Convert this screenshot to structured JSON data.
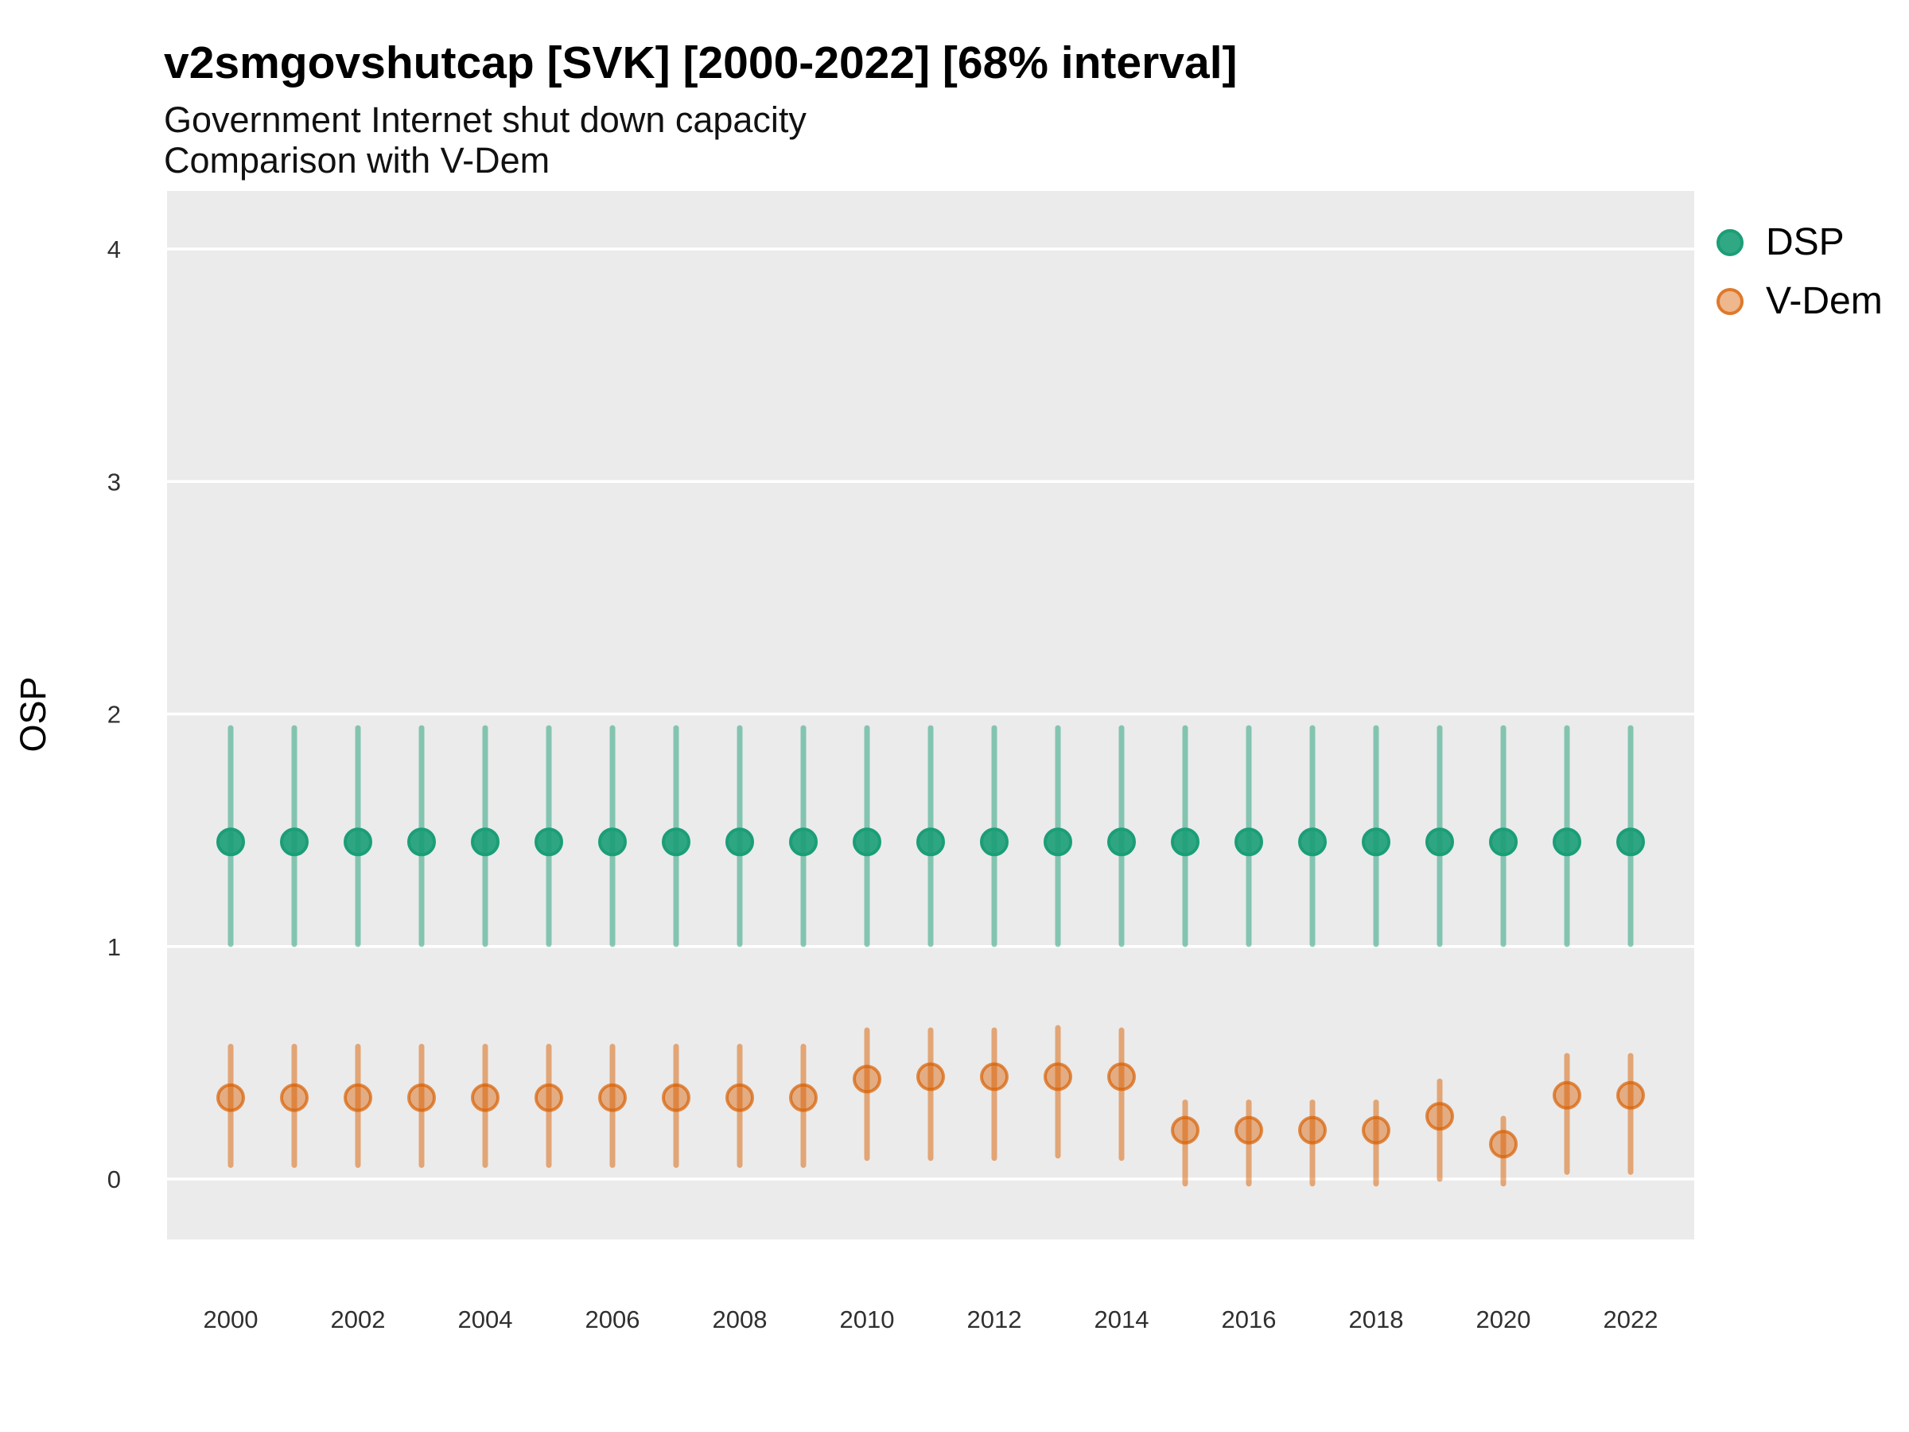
{
  "chart_data": {
    "type": "scatter",
    "title": "v2smgovshutcap [SVK] [2000-2022] [68% interval]",
    "subtitle1": "Government Internet shut down capacity",
    "subtitle2": "Comparison with V-Dem",
    "ylabel": "OSP",
    "interval_note": "68% interval",
    "legend_position": "right",
    "grid": "horizontal-major-only",
    "panel_color": "#ebebeb",
    "gridline_color": "#ffffff",
    "tick_label_color": "#303030",
    "xlim": [
      1999,
      2023
    ],
    "ylim": [
      -0.26,
      4.25
    ],
    "xticks": [
      2000,
      2002,
      2004,
      2006,
      2008,
      2010,
      2012,
      2014,
      2016,
      2018,
      2020,
      2022
    ],
    "yticks": [
      0,
      1,
      2,
      3,
      4
    ],
    "series": [
      {
        "name": "DSP",
        "color": "#1b9e77",
        "line_color": "rgba(27,158,119,0.5)",
        "point_fill": "rgba(27,158,119,0.9)",
        "point_stroke": "#1b9e77",
        "points": [
          {
            "year": 2000,
            "est": 1.45,
            "lo": 1.01,
            "hi": 1.94
          },
          {
            "year": 2001,
            "est": 1.45,
            "lo": 1.01,
            "hi": 1.94
          },
          {
            "year": 2002,
            "est": 1.45,
            "lo": 1.01,
            "hi": 1.94
          },
          {
            "year": 2003,
            "est": 1.45,
            "lo": 1.01,
            "hi": 1.94
          },
          {
            "year": 2004,
            "est": 1.45,
            "lo": 1.01,
            "hi": 1.94
          },
          {
            "year": 2005,
            "est": 1.45,
            "lo": 1.01,
            "hi": 1.94
          },
          {
            "year": 2006,
            "est": 1.45,
            "lo": 1.01,
            "hi": 1.94
          },
          {
            "year": 2007,
            "est": 1.45,
            "lo": 1.01,
            "hi": 1.94
          },
          {
            "year": 2008,
            "est": 1.45,
            "lo": 1.01,
            "hi": 1.94
          },
          {
            "year": 2009,
            "est": 1.45,
            "lo": 1.01,
            "hi": 1.94
          },
          {
            "year": 2010,
            "est": 1.45,
            "lo": 1.01,
            "hi": 1.94
          },
          {
            "year": 2011,
            "est": 1.45,
            "lo": 1.01,
            "hi": 1.94
          },
          {
            "year": 2012,
            "est": 1.45,
            "lo": 1.01,
            "hi": 1.94
          },
          {
            "year": 2013,
            "est": 1.45,
            "lo": 1.01,
            "hi": 1.94
          },
          {
            "year": 2014,
            "est": 1.45,
            "lo": 1.01,
            "hi": 1.94
          },
          {
            "year": 2015,
            "est": 1.45,
            "lo": 1.01,
            "hi": 1.94
          },
          {
            "year": 2016,
            "est": 1.45,
            "lo": 1.01,
            "hi": 1.94
          },
          {
            "year": 2017,
            "est": 1.45,
            "lo": 1.01,
            "hi": 1.94
          },
          {
            "year": 2018,
            "est": 1.45,
            "lo": 1.01,
            "hi": 1.94
          },
          {
            "year": 2019,
            "est": 1.45,
            "lo": 1.01,
            "hi": 1.94
          },
          {
            "year": 2020,
            "est": 1.45,
            "lo": 1.01,
            "hi": 1.94
          },
          {
            "year": 2021,
            "est": 1.45,
            "lo": 1.01,
            "hi": 1.94
          },
          {
            "year": 2022,
            "est": 1.45,
            "lo": 1.01,
            "hi": 1.94
          }
        ]
      },
      {
        "name": "V-Dem",
        "color": "#d95f02",
        "line_color": "rgba(217,95,2,0.5)",
        "point_fill": "rgba(217,95,2,0.45)",
        "point_stroke": "rgba(217,95,2,0.7)",
        "points": [
          {
            "year": 2000,
            "est": 0.35,
            "lo": 0.06,
            "hi": 0.57
          },
          {
            "year": 2001,
            "est": 0.35,
            "lo": 0.06,
            "hi": 0.57
          },
          {
            "year": 2002,
            "est": 0.35,
            "lo": 0.06,
            "hi": 0.57
          },
          {
            "year": 2003,
            "est": 0.35,
            "lo": 0.06,
            "hi": 0.57
          },
          {
            "year": 2004,
            "est": 0.35,
            "lo": 0.06,
            "hi": 0.57
          },
          {
            "year": 2005,
            "est": 0.35,
            "lo": 0.06,
            "hi": 0.57
          },
          {
            "year": 2006,
            "est": 0.35,
            "lo": 0.06,
            "hi": 0.57
          },
          {
            "year": 2007,
            "est": 0.35,
            "lo": 0.06,
            "hi": 0.57
          },
          {
            "year": 2008,
            "est": 0.35,
            "lo": 0.06,
            "hi": 0.57
          },
          {
            "year": 2009,
            "est": 0.35,
            "lo": 0.06,
            "hi": 0.57
          },
          {
            "year": 2010,
            "est": 0.43,
            "lo": 0.09,
            "hi": 0.64
          },
          {
            "year": 2011,
            "est": 0.44,
            "lo": 0.09,
            "hi": 0.64
          },
          {
            "year": 2012,
            "est": 0.44,
            "lo": 0.09,
            "hi": 0.64
          },
          {
            "year": 2013,
            "est": 0.44,
            "lo": 0.1,
            "hi": 0.65
          },
          {
            "year": 2014,
            "est": 0.44,
            "lo": 0.09,
            "hi": 0.64
          },
          {
            "year": 2015,
            "est": 0.21,
            "lo": -0.02,
            "hi": 0.33
          },
          {
            "year": 2016,
            "est": 0.21,
            "lo": -0.02,
            "hi": 0.33
          },
          {
            "year": 2017,
            "est": 0.21,
            "lo": -0.02,
            "hi": 0.33
          },
          {
            "year": 2018,
            "est": 0.21,
            "lo": -0.02,
            "hi": 0.33
          },
          {
            "year": 2019,
            "est": 0.27,
            "lo": 0.0,
            "hi": 0.42
          },
          {
            "year": 2020,
            "est": 0.15,
            "lo": -0.02,
            "hi": 0.26
          },
          {
            "year": 2021,
            "est": 0.36,
            "lo": 0.03,
            "hi": 0.53
          },
          {
            "year": 2022,
            "est": 0.36,
            "lo": 0.03,
            "hi": 0.53
          }
        ]
      }
    ]
  }
}
